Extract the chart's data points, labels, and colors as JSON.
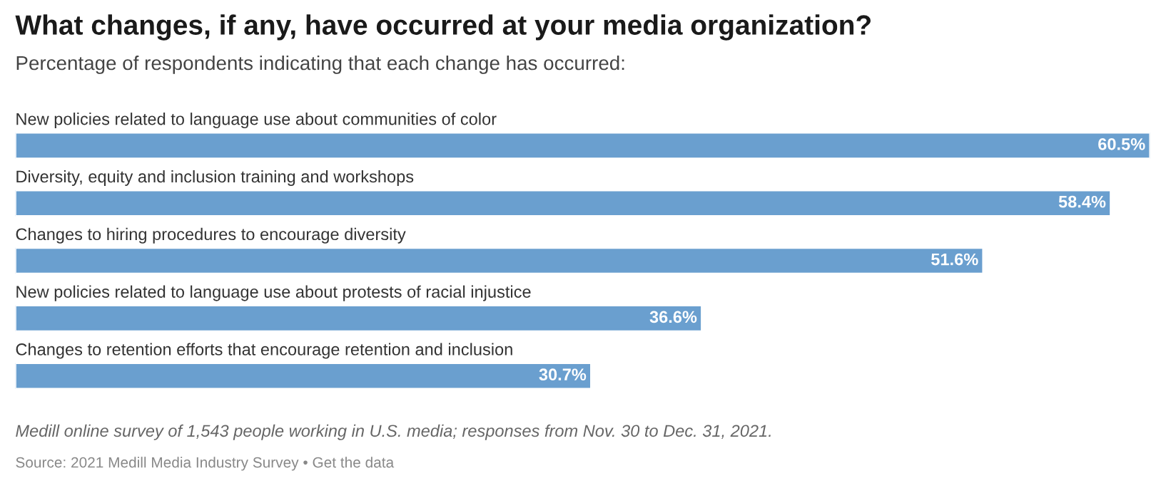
{
  "chart_data": {
    "type": "bar",
    "orientation": "horizontal",
    "title": "What changes, if any, have occurred at your media organization?",
    "subtitle": "Percentage of respondents indicating that each change has occurred:",
    "categories": [
      "New policies related to language use about communities of color",
      "Diversity, equity and inclusion training and workshops",
      "Changes to hiring procedures to encourage diversity",
      "New policies related to language use about protests of racial injustice",
      "Changes to retention efforts that encourage retention and inclusion"
    ],
    "values": [
      60.5,
      58.4,
      51.6,
      36.6,
      30.7
    ],
    "color": "#6a9fcf",
    "value_labels": [
      "60.5%",
      "58.4%",
      "51.6%",
      "36.6%",
      "30.7%"
    ],
    "annotations": [
      "Medill online survey of 1,543 people working in U.S. media; responses from Nov. 30 to Dec. 31, 2021.",
      "Source: 2021 Medill Media Industry Survey • Get the data"
    ],
    "tick_labels": false
  }
}
